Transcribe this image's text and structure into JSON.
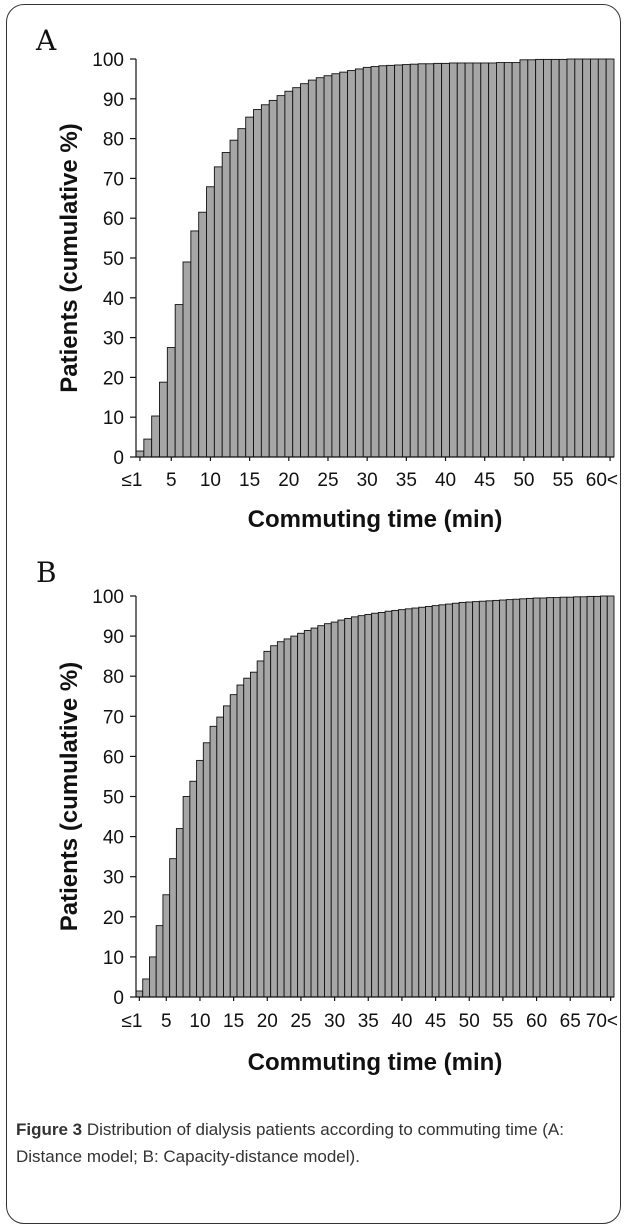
{
  "chart_data": [
    {
      "type": "bar",
      "panel": "A",
      "xlabel": "Commuting time (min)",
      "ylabel": "Patients (cumulative %)",
      "ylim": [
        0,
        100
      ],
      "yticks": [
        0,
        10,
        20,
        30,
        40,
        50,
        60,
        70,
        80,
        90,
        100
      ],
      "xtick_labels": [
        {
          "index": 0,
          "label": "≤1"
        },
        {
          "index": 4,
          "label": "5"
        },
        {
          "index": 9,
          "label": "10"
        },
        {
          "index": 14,
          "label": "15"
        },
        {
          "index": 19,
          "label": "20"
        },
        {
          "index": 24,
          "label": "25"
        },
        {
          "index": 29,
          "label": "30"
        },
        {
          "index": 34,
          "label": "35"
        },
        {
          "index": 39,
          "label": "40"
        },
        {
          "index": 44,
          "label": "45"
        },
        {
          "index": 49,
          "label": "50"
        },
        {
          "index": 54,
          "label": "55"
        },
        {
          "index": 60,
          "label": "60<"
        }
      ],
      "values": [
        1.5,
        4.5,
        10.3,
        18.8,
        27.5,
        38.3,
        49.0,
        56.8,
        61.5,
        67.9,
        72.9,
        76.5,
        79.6,
        82.5,
        85.4,
        87.3,
        88.5,
        89.6,
        90.8,
        91.9,
        92.8,
        93.8,
        94.7,
        95.3,
        95.8,
        96.3,
        96.7,
        97.1,
        97.5,
        97.9,
        98.1,
        98.3,
        98.4,
        98.5,
        98.6,
        98.7,
        98.8,
        98.8,
        98.9,
        98.9,
        99.0,
        99.0,
        99.0,
        99.0,
        99.0,
        99.0,
        99.1,
        99.1,
        99.1,
        99.8,
        99.8,
        99.9,
        99.9,
        99.9,
        99.9,
        100.0,
        100.0,
        100.0,
        100.0,
        100.0,
        100.0
      ]
    },
    {
      "type": "bar",
      "panel": "B",
      "xlabel": "Commuting time (min)",
      "ylabel": "Patients (cumulative %)",
      "ylim": [
        0,
        100
      ],
      "yticks": [
        0,
        10,
        20,
        30,
        40,
        50,
        60,
        70,
        80,
        90,
        100
      ],
      "xtick_labels": [
        {
          "index": 0,
          "label": "≤1"
        },
        {
          "index": 4,
          "label": "5"
        },
        {
          "index": 9,
          "label": "10"
        },
        {
          "index": 14,
          "label": "15"
        },
        {
          "index": 19,
          "label": "20"
        },
        {
          "index": 24,
          "label": "25"
        },
        {
          "index": 29,
          "label": "30"
        },
        {
          "index": 34,
          "label": "35"
        },
        {
          "index": 39,
          "label": "40"
        },
        {
          "index": 44,
          "label": "45"
        },
        {
          "index": 49,
          "label": "50"
        },
        {
          "index": 54,
          "label": "55"
        },
        {
          "index": 59,
          "label": "60"
        },
        {
          "index": 64,
          "label": "65"
        },
        {
          "index": 70,
          "label": "70<"
        }
      ],
      "values": [
        1.5,
        4.5,
        10.0,
        17.8,
        25.5,
        34.5,
        42.0,
        50.0,
        53.8,
        59.0,
        63.4,
        67.5,
        69.8,
        72.6,
        75.4,
        77.8,
        79.5,
        81.0,
        83.8,
        86.2,
        87.6,
        88.6,
        89.3,
        90.0,
        90.7,
        91.4,
        92.0,
        92.6,
        93.1,
        93.5,
        94.0,
        94.4,
        94.8,
        95.1,
        95.4,
        95.7,
        95.9,
        96.2,
        96.4,
        96.6,
        96.8,
        97.0,
        97.2,
        97.4,
        97.6,
        97.8,
        98.0,
        98.2,
        98.4,
        98.5,
        98.6,
        98.7,
        98.8,
        98.9,
        99.0,
        99.1,
        99.2,
        99.3,
        99.4,
        99.5,
        99.5,
        99.6,
        99.6,
        99.7,
        99.7,
        99.8,
        99.8,
        99.9,
        99.9,
        100.0,
        100.0
      ]
    }
  ],
  "caption": {
    "figure_label": "Figure 3",
    "text": " Distribution of dialysis patients according to commuting time (A: Distance model; B: Capacity-distance model)."
  }
}
